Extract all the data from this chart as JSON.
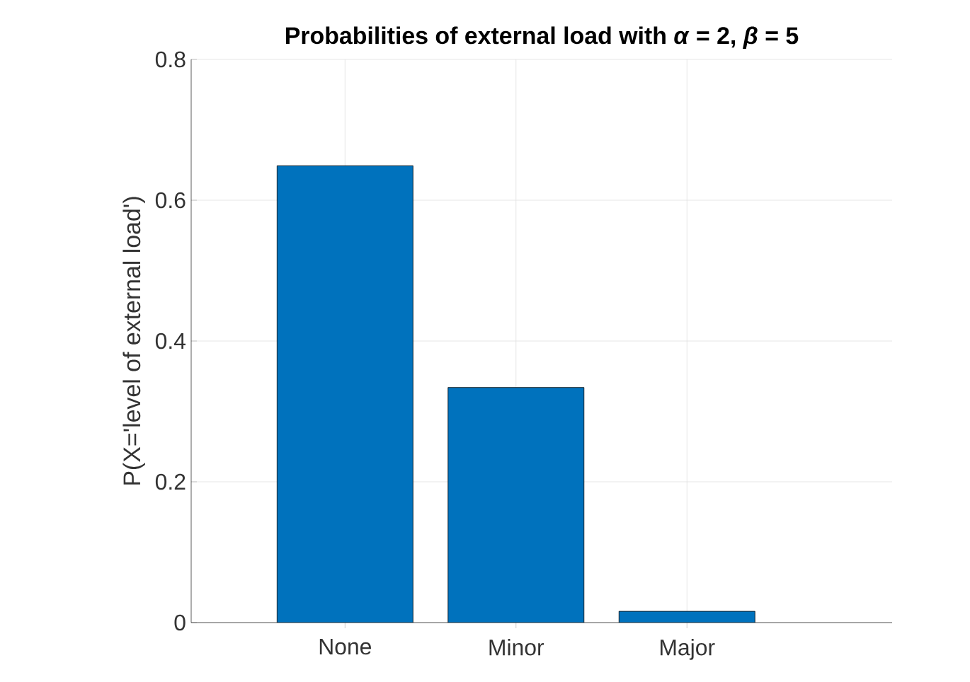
{
  "chart_data": {
    "type": "bar",
    "title": "Probabilities of external load with *α* = 2, *β* = 5",
    "ylabel": "P(X='level of external load')",
    "categories": [
      "None",
      "Minor",
      "Major"
    ],
    "values": [
      0.649,
      0.334,
      0.016
    ],
    "color": "#0072bd",
    "ylim": [
      0,
      0.8
    ],
    "yticks": [
      0,
      0.2,
      0.4,
      0.6,
      0.8
    ],
    "grid": true
  }
}
